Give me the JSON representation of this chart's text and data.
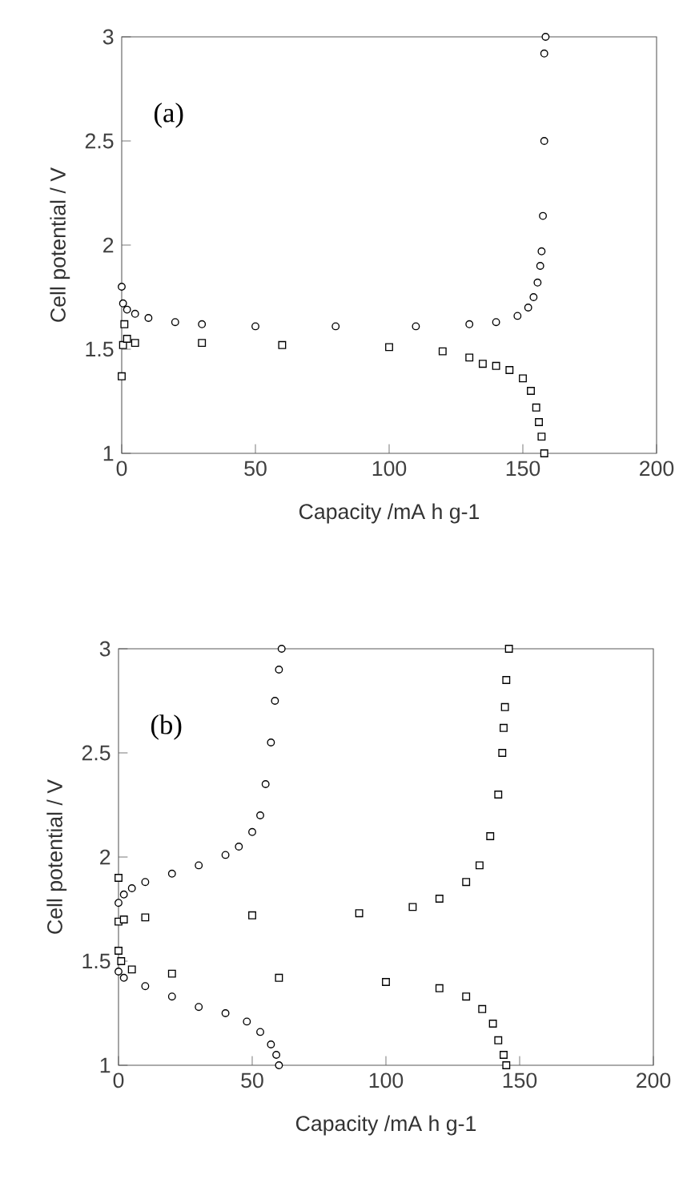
{
  "chart_data": [
    {
      "type": "scatter",
      "xlabel": "Capacity   /mA h g-1",
      "ylabel": "Cell potential / V",
      "annotations": [
        "(a)"
      ],
      "xlim": [
        0,
        200
      ],
      "ylim": [
        1,
        3
      ],
      "xticks": [
        0,
        50,
        100,
        150,
        200
      ],
      "yticks": [
        1,
        1.5,
        2,
        2.5,
        3
      ],
      "series": [
        {
          "color": "#000000",
          "marker": "circle",
          "x": [
            0,
            0.5,
            2,
            5,
            10,
            20,
            30,
            50,
            80,
            110,
            130,
            140,
            148,
            152,
            154,
            155.5,
            156.5,
            157,
            157.5,
            158,
            158,
            158.5
          ],
          "values": [
            1.8,
            1.72,
            1.69,
            1.67,
            1.65,
            1.63,
            1.62,
            1.61,
            1.61,
            1.61,
            1.62,
            1.63,
            1.66,
            1.7,
            1.75,
            1.82,
            1.9,
            1.97,
            2.14,
            2.5,
            2.92,
            3.0
          ]
        },
        {
          "color": "#000000",
          "marker": "square",
          "x": [
            0,
            0.5,
            1,
            2,
            5,
            30,
            60,
            100,
            120,
            130,
            135,
            140,
            145,
            150,
            153,
            155,
            156,
            157,
            158
          ],
          "values": [
            1.37,
            1.52,
            1.62,
            1.55,
            1.53,
            1.53,
            1.52,
            1.51,
            1.49,
            1.46,
            1.43,
            1.42,
            1.4,
            1.36,
            1.3,
            1.22,
            1.15,
            1.08,
            1.0
          ]
        }
      ]
    },
    {
      "type": "scatter",
      "xlabel": "Capacity  /mA h g-1",
      "ylabel": "Cell potential / V",
      "annotations": [
        "(b)"
      ],
      "xlim": [
        0,
        200
      ],
      "ylim": [
        1,
        3
      ],
      "xticks": [
        0,
        50,
        100,
        150,
        200
      ],
      "yticks": [
        1,
        1.5,
        2,
        2.5,
        3
      ],
      "series": [
        {
          "color": "#000000",
          "marker": "circle",
          "x": [
            0,
            2,
            5,
            10,
            20,
            30,
            40,
            45,
            50,
            53,
            55,
            57,
            58.5,
            60,
            61
          ],
          "values": [
            1.78,
            1.82,
            1.85,
            1.88,
            1.92,
            1.96,
            2.01,
            2.05,
            2.12,
            2.2,
            2.35,
            2.55,
            2.75,
            2.9,
            3.0
          ]
        },
        {
          "color": "#000000",
          "marker": "circle",
          "x": [
            0,
            2,
            10,
            20,
            30,
            40,
            48,
            53,
            57,
            59,
            60
          ],
          "values": [
            1.45,
            1.42,
            1.38,
            1.33,
            1.28,
            1.25,
            1.21,
            1.16,
            1.1,
            1.05,
            1.0
          ]
        },
        {
          "color": "#000000",
          "marker": "square",
          "x": [
            0,
            0,
            2,
            10,
            50,
            90,
            110,
            120,
            130,
            135,
            139,
            142,
            143.5,
            144,
            144.5,
            145,
            146
          ],
          "values": [
            1.9,
            1.69,
            1.7,
            1.71,
            1.72,
            1.73,
            1.76,
            1.8,
            1.88,
            1.96,
            2.1,
            2.3,
            2.5,
            2.62,
            2.72,
            2.85,
            3.0
          ]
        },
        {
          "color": "#000000",
          "marker": "square",
          "x": [
            0,
            1,
            5,
            20,
            60,
            100,
            120,
            130,
            136,
            140,
            142,
            144,
            145
          ],
          "values": [
            1.55,
            1.5,
            1.46,
            1.44,
            1.42,
            1.4,
            1.37,
            1.33,
            1.27,
            1.2,
            1.12,
            1.05,
            1.0
          ]
        }
      ]
    }
  ]
}
